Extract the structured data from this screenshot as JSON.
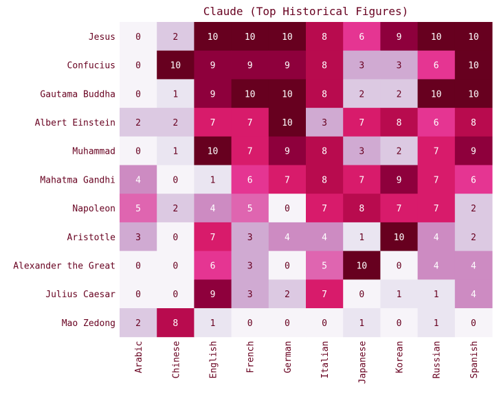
{
  "chart_data": {
    "type": "heatmap",
    "title": "Claude (Top Historical Figures)",
    "xlabel": "",
    "ylabel": "",
    "columns": [
      "Arabic",
      "Chinese",
      "English",
      "French",
      "German",
      "Italian",
      "Japanese",
      "Korean",
      "Russian",
      "Spanish"
    ],
    "rows": [
      "Jesus",
      "Confucius",
      "Gautama Buddha",
      "Albert Einstein",
      "Muhammad",
      "Mahatma Gandhi",
      "Napoleon",
      "Aristotle",
      "Alexander the Great",
      "Julius Caesar",
      "Mao Zedong"
    ],
    "values": [
      [
        0,
        2,
        10,
        10,
        10,
        8,
        6,
        9,
        10,
        10
      ],
      [
        0,
        10,
        9,
        9,
        9,
        8,
        3,
        3,
        6,
        10
      ],
      [
        0,
        1,
        9,
        10,
        10,
        8,
        2,
        2,
        10,
        10
      ],
      [
        2,
        2,
        7,
        7,
        10,
        3,
        7,
        8,
        6,
        8
      ],
      [
        0,
        1,
        10,
        7,
        9,
        8,
        3,
        2,
        7,
        9
      ],
      [
        4,
        0,
        1,
        6,
        7,
        8,
        7,
        9,
        7,
        6
      ],
      [
        5,
        2,
        4,
        5,
        0,
        7,
        8,
        7,
        7,
        2
      ],
      [
        3,
        0,
        7,
        3,
        4,
        4,
        1,
        10,
        4,
        2
      ],
      [
        0,
        0,
        6,
        3,
        0,
        5,
        10,
        0,
        4,
        4
      ],
      [
        0,
        0,
        9,
        3,
        2,
        7,
        0,
        1,
        1,
        4
      ],
      [
        2,
        8,
        1,
        0,
        0,
        0,
        1,
        0,
        1,
        0
      ]
    ],
    "value_range": [
      0,
      10
    ],
    "colormap": [
      "#f7f4f9",
      "#e7e1ef",
      "#d4b9da",
      "#c994c7",
      "#df65b0",
      "#e7298a",
      "#ce1256",
      "#980043",
      "#67001f"
    ],
    "text_color": "#67001f",
    "grid": false,
    "legend": "none"
  }
}
